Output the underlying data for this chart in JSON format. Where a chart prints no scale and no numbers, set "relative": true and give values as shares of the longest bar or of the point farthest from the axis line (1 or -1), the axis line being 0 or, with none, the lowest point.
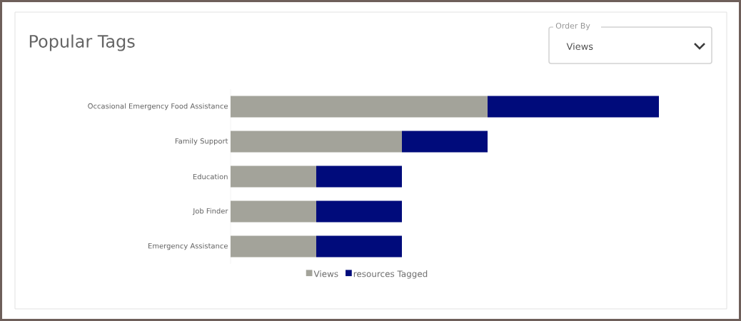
{
  "chart_data": {
    "type": "bar",
    "orientation": "horizontal",
    "stacked": true,
    "relative": true,
    "title": "Popular Tags",
    "categories": [
      "Occasional Emergency Food Assistance",
      "Family Support",
      "Education",
      "Job Finder",
      "Emergency Assistance"
    ],
    "series": [
      {
        "name": "Views",
        "color": "#a3a39a",
        "values": [
          0.6,
          0.4,
          0.2,
          0.2,
          0.2
        ]
      },
      {
        "name": "resources Tagged",
        "color": "#000b7b",
        "values": [
          0.4,
          0.2,
          0.2,
          0.2,
          0.2
        ]
      }
    ],
    "legend": "bottom",
    "annotations": [
      "Order By",
      "Views"
    ]
  }
}
